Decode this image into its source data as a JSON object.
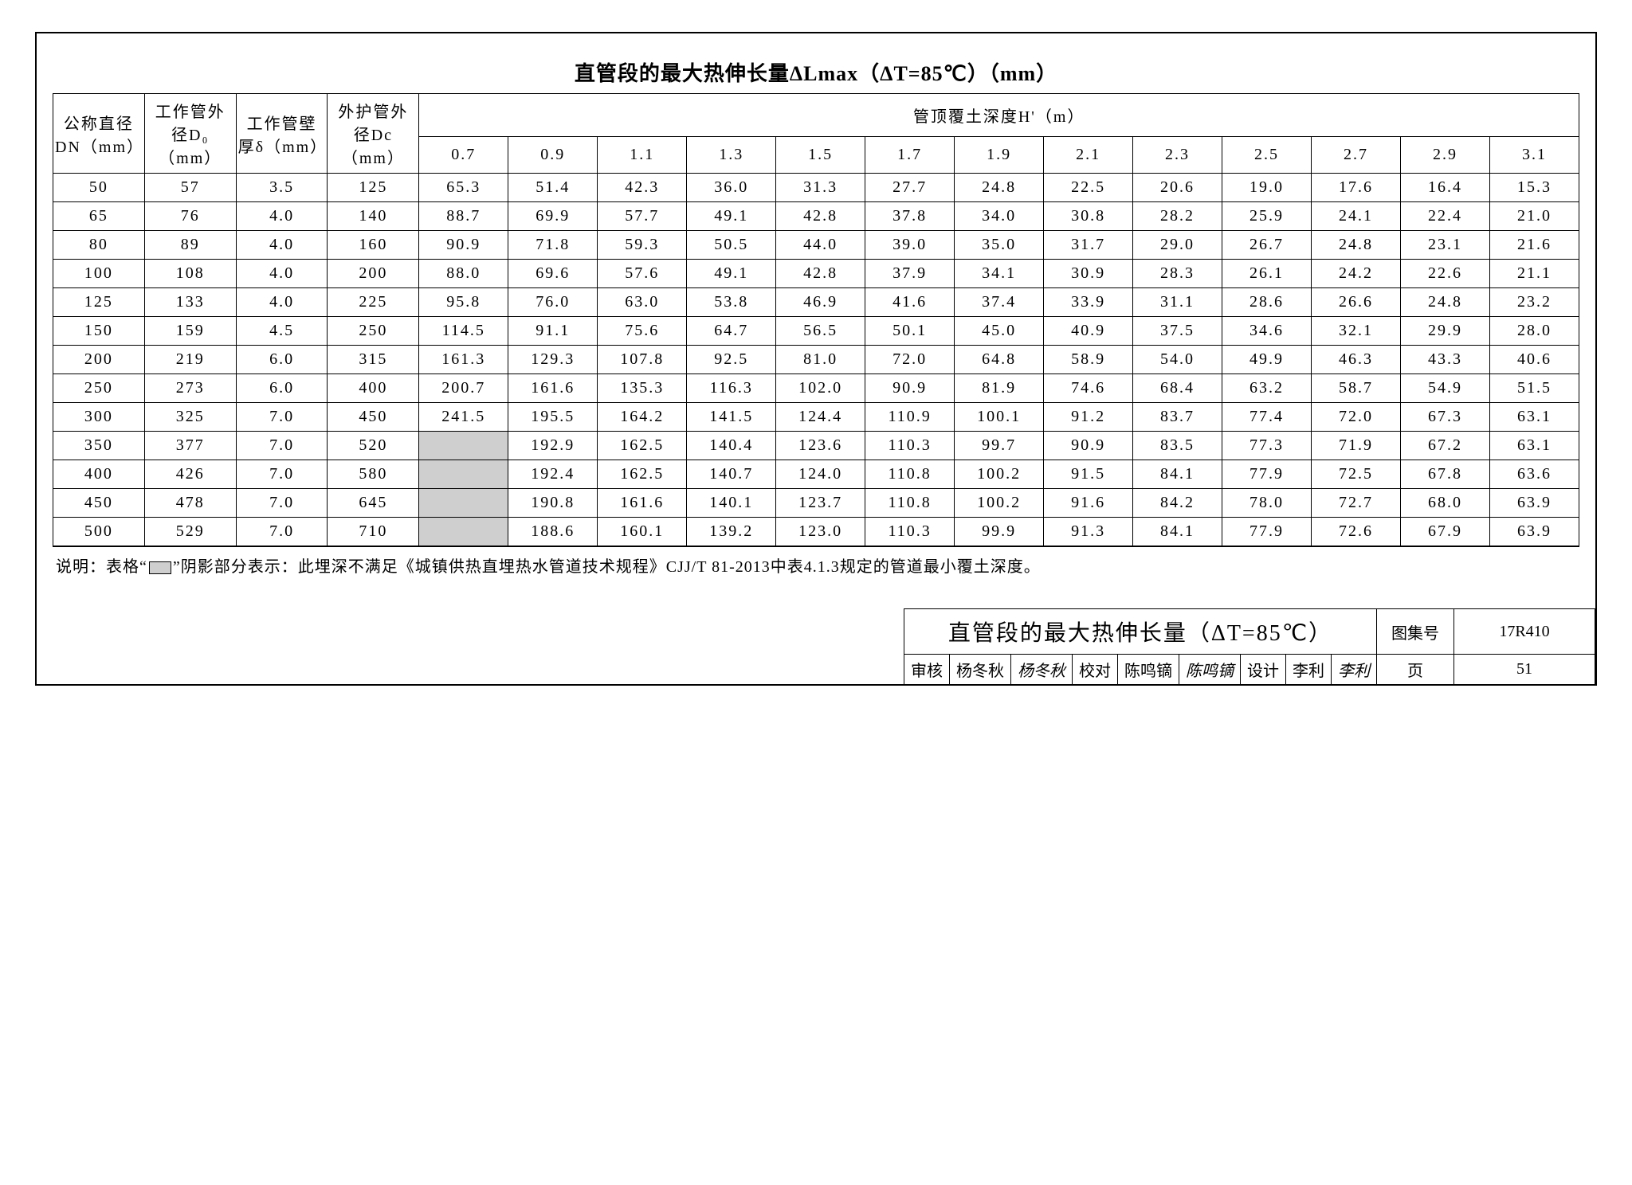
{
  "title": "直管段的最大热伸长量ΔLmax（ΔT=85℃）（mm）",
  "headers": {
    "dn": "公称直径\nDN（mm）",
    "do": "工作管外\n径D₀（mm）",
    "delta": "工作管壁\n厚δ（mm）",
    "dc": "外护管外\n径Dc（mm）",
    "group": "管顶覆土深度H'（m）"
  },
  "depth_cols": [
    "0.7",
    "0.9",
    "1.1",
    "1.3",
    "1.5",
    "1.7",
    "1.9",
    "2.1",
    "2.3",
    "2.5",
    "2.7",
    "2.9",
    "3.1"
  ],
  "rows": [
    {
      "dn": "50",
      "do": "57",
      "delta": "3.5",
      "dc": "125",
      "v": [
        "65.3",
        "51.4",
        "42.3",
        "36.0",
        "31.3",
        "27.7",
        "24.8",
        "22.5",
        "20.6",
        "19.0",
        "17.6",
        "16.4",
        "15.3"
      ],
      "shade": []
    },
    {
      "dn": "65",
      "do": "76",
      "delta": "4.0",
      "dc": "140",
      "v": [
        "88.7",
        "69.9",
        "57.7",
        "49.1",
        "42.8",
        "37.8",
        "34.0",
        "30.8",
        "28.2",
        "25.9",
        "24.1",
        "22.4",
        "21.0"
      ],
      "shade": []
    },
    {
      "dn": "80",
      "do": "89",
      "delta": "4.0",
      "dc": "160",
      "v": [
        "90.9",
        "71.8",
        "59.3",
        "50.5",
        "44.0",
        "39.0",
        "35.0",
        "31.7",
        "29.0",
        "26.7",
        "24.8",
        "23.1",
        "21.6"
      ],
      "shade": []
    },
    {
      "dn": "100",
      "do": "108",
      "delta": "4.0",
      "dc": "200",
      "v": [
        "88.0",
        "69.6",
        "57.6",
        "49.1",
        "42.8",
        "37.9",
        "34.1",
        "30.9",
        "28.3",
        "26.1",
        "24.2",
        "22.6",
        "21.1"
      ],
      "shade": []
    },
    {
      "dn": "125",
      "do": "133",
      "delta": "4.0",
      "dc": "225",
      "v": [
        "95.8",
        "76.0",
        "63.0",
        "53.8",
        "46.9",
        "41.6",
        "37.4",
        "33.9",
        "31.1",
        "28.6",
        "26.6",
        "24.8",
        "23.2"
      ],
      "shade": []
    },
    {
      "dn": "150",
      "do": "159",
      "delta": "4.5",
      "dc": "250",
      "v": [
        "114.5",
        "91.1",
        "75.6",
        "64.7",
        "56.5",
        "50.1",
        "45.0",
        "40.9",
        "37.5",
        "34.6",
        "32.1",
        "29.9",
        "28.0"
      ],
      "shade": []
    },
    {
      "dn": "200",
      "do": "219",
      "delta": "6.0",
      "dc": "315",
      "v": [
        "161.3",
        "129.3",
        "107.8",
        "92.5",
        "81.0",
        "72.0",
        "64.8",
        "58.9",
        "54.0",
        "49.9",
        "46.3",
        "43.3",
        "40.6"
      ],
      "shade": []
    },
    {
      "dn": "250",
      "do": "273",
      "delta": "6.0",
      "dc": "400",
      "v": [
        "200.7",
        "161.6",
        "135.3",
        "116.3",
        "102.0",
        "90.9",
        "81.9",
        "74.6",
        "68.4",
        "63.2",
        "58.7",
        "54.9",
        "51.5"
      ],
      "shade": []
    },
    {
      "dn": "300",
      "do": "325",
      "delta": "7.0",
      "dc": "450",
      "v": [
        "241.5",
        "195.5",
        "164.2",
        "141.5",
        "124.4",
        "110.9",
        "100.1",
        "91.2",
        "83.7",
        "77.4",
        "72.0",
        "67.3",
        "63.1"
      ],
      "shade": []
    },
    {
      "dn": "350",
      "do": "377",
      "delta": "7.0",
      "dc": "520",
      "v": [
        "",
        "192.9",
        "162.5",
        "140.4",
        "123.6",
        "110.3",
        "99.7",
        "90.9",
        "83.5",
        "77.3",
        "71.9",
        "67.2",
        "63.1"
      ],
      "shade": [
        0
      ]
    },
    {
      "dn": "400",
      "do": "426",
      "delta": "7.0",
      "dc": "580",
      "v": [
        "",
        "192.4",
        "162.5",
        "140.7",
        "124.0",
        "110.8",
        "100.2",
        "91.5",
        "84.1",
        "77.9",
        "72.5",
        "67.8",
        "63.6"
      ],
      "shade": [
        0
      ]
    },
    {
      "dn": "450",
      "do": "478",
      "delta": "7.0",
      "dc": "645",
      "v": [
        "",
        "190.8",
        "161.6",
        "140.1",
        "123.7",
        "110.8",
        "100.2",
        "91.6",
        "84.2",
        "78.0",
        "72.7",
        "68.0",
        "63.9"
      ],
      "shade": [
        0
      ]
    },
    {
      "dn": "500",
      "do": "529",
      "delta": "7.0",
      "dc": "710",
      "v": [
        "",
        "188.6",
        "160.1",
        "139.2",
        "123.0",
        "110.3",
        "99.9",
        "91.3",
        "84.1",
        "77.9",
        "72.6",
        "67.9",
        "63.9"
      ],
      "shade": [
        0
      ]
    }
  ],
  "note_prefix": "说明：表格“",
  "note_suffix": "”阴影部分表示：此埋深不满足《城镇供热直埋热水管道技术规程》CJJ/T 81-2013中表4.1.3规定的管道最小覆土深度。",
  "titleblock": {
    "big": "直管段的最大热伸长量（ΔT=85℃）",
    "atlas_label": "图集号",
    "atlas_value": "17R410",
    "review_label": "审核",
    "review_name": "杨冬秋",
    "review_sig": "杨冬秋",
    "check_label": "校对",
    "check_name": "陈鸣镝",
    "check_sig": "陈鸣镝",
    "design_label": "设计",
    "design_name": "李利",
    "design_sig": "李利",
    "page_label": "页",
    "page_value": "51"
  }
}
